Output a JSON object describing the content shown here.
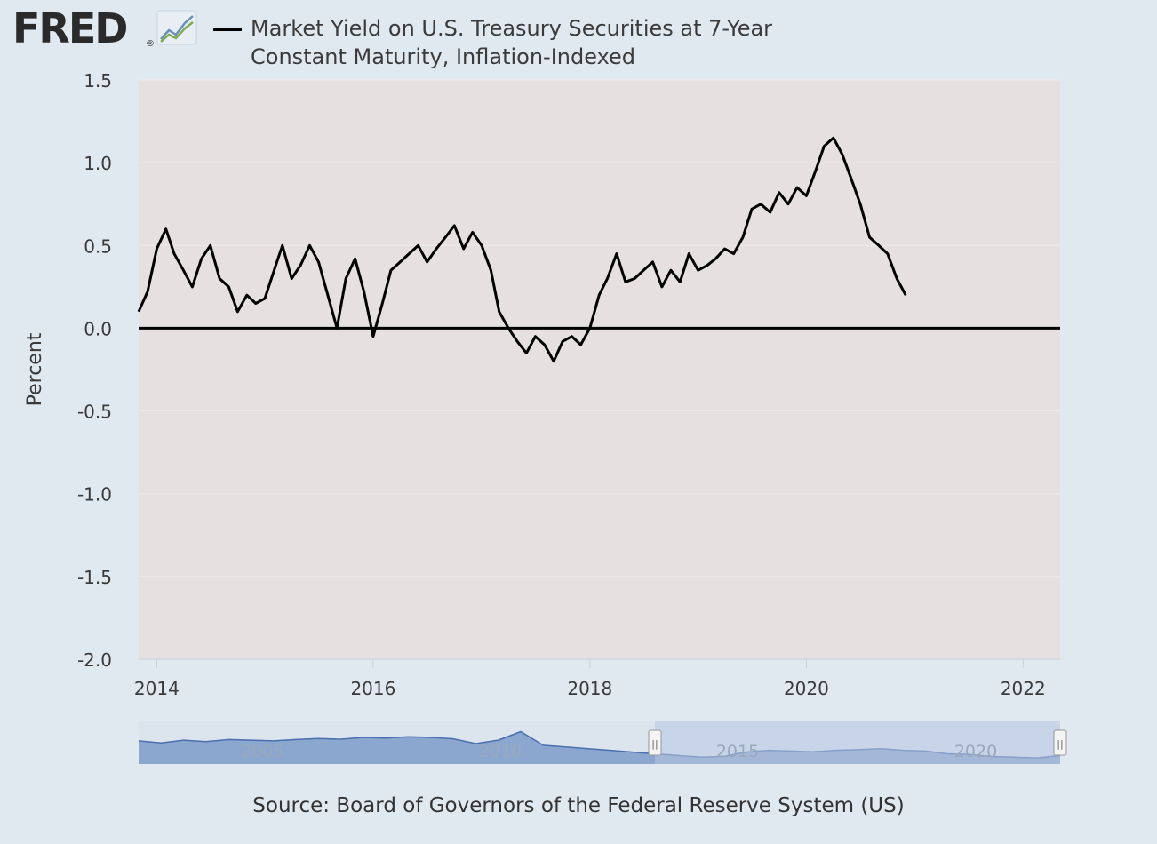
{
  "header": {
    "logo_text": "FRED",
    "logo_registered": "®",
    "logo_icon": "line-chart-icon",
    "legend_label": "Market Yield on U.S. Treasury Securities at 7-Year Constant Maturity, Inflation-Indexed"
  },
  "source": "Source: Board of Governors of the Federal Reserve System (US)",
  "colors": {
    "page_bg": "#e1e9f0",
    "plot_bg": "#e6e1e0",
    "series": "#000000",
    "navigator_fill": "#7d9cc9",
    "navigator_line": "#4a6fae",
    "navigator_selection": "#b8c7e2"
  },
  "chart_data": {
    "type": "line",
    "title": "",
    "xlabel": "",
    "ylabel": "Percent",
    "ylim": [
      -2.0,
      1.5
    ],
    "yticks": [
      1.5,
      1.0,
      0.5,
      0.0,
      -0.5,
      -1.0,
      -1.5,
      -2.0
    ],
    "ytick_labels": [
      "1.5",
      "1.0",
      "0.5",
      "0.0",
      "-0.5",
      "-1.0",
      "-1.5",
      "-2.0"
    ],
    "xlim": [
      "2013-11-01",
      "2022-05-06"
    ],
    "xticks": [
      "2014",
      "2016",
      "2018",
      "2020",
      "2022"
    ],
    "grid": true,
    "legend_position": "top",
    "reference_line": 0.0,
    "series": [
      {
        "name": "Market Yield on U.S. Treasury Securities at 7-Year Constant Maturity, Inflation-Indexed",
        "color": "#000000",
        "points": [
          [
            "2013-11-01",
            0.1
          ],
          [
            "2013-12-01",
            0.22
          ],
          [
            "2014-01-01",
            0.48
          ],
          [
            "2014-02-01",
            0.6
          ],
          [
            "2014-03-01",
            0.45
          ],
          [
            "2014-04-01",
            0.35
          ],
          [
            "2014-05-01",
            0.25
          ],
          [
            "2014-06-01",
            0.42
          ],
          [
            "2014-07-01",
            0.5
          ],
          [
            "2014-08-01",
            0.3
          ],
          [
            "2014-09-01",
            0.25
          ],
          [
            "2014-10-01",
            0.1
          ],
          [
            "2014-11-01",
            0.2
          ],
          [
            "2014-12-01",
            0.15
          ],
          [
            "2015-01-01",
            0.18
          ],
          [
            "2015-02-01",
            0.35
          ],
          [
            "2015-03-01",
            0.5
          ],
          [
            "2015-04-01",
            0.3
          ],
          [
            "2015-05-01",
            0.38
          ],
          [
            "2015-06-01",
            0.5
          ],
          [
            "2015-07-01",
            0.4
          ],
          [
            "2015-08-01",
            0.2
          ],
          [
            "2015-09-01",
            0.0
          ],
          [
            "2015-10-01",
            0.3
          ],
          [
            "2015-11-01",
            0.42
          ],
          [
            "2015-12-01",
            0.22
          ],
          [
            "2016-01-01",
            -0.05
          ],
          [
            "2016-02-01",
            0.15
          ],
          [
            "2016-03-01",
            0.35
          ],
          [
            "2016-04-01",
            0.4
          ],
          [
            "2016-05-01",
            0.45
          ],
          [
            "2016-06-01",
            0.5
          ],
          [
            "2016-07-01",
            0.4
          ],
          [
            "2016-08-01",
            0.48
          ],
          [
            "2016-09-01",
            0.55
          ],
          [
            "2016-10-01",
            0.62
          ],
          [
            "2016-11-01",
            0.48
          ],
          [
            "2016-12-01",
            0.58
          ],
          [
            "2017-01-01",
            0.5
          ],
          [
            "2017-02-01",
            0.35
          ],
          [
            "2017-03-01",
            0.1
          ],
          [
            "2017-04-01",
            0.0
          ],
          [
            "2017-05-01",
            -0.08
          ],
          [
            "2017-06-01",
            -0.15
          ],
          [
            "2017-07-01",
            -0.05
          ],
          [
            "2017-08-01",
            -0.1
          ],
          [
            "2017-09-01",
            -0.2
          ],
          [
            "2017-10-01",
            -0.08
          ],
          [
            "2017-11-01",
            -0.05
          ],
          [
            "2017-12-01",
            -0.1
          ],
          [
            "2018-01-01",
            0.0
          ],
          [
            "2018-02-01",
            0.2
          ],
          [
            "2018-03-01",
            0.3
          ],
          [
            "2018-04-01",
            0.45
          ],
          [
            "2018-05-01",
            0.28
          ],
          [
            "2018-06-01",
            0.3
          ],
          [
            "2018-07-01",
            0.35
          ],
          [
            "2018-08-01",
            0.4
          ],
          [
            "2018-09-01",
            0.25
          ],
          [
            "2018-10-01",
            0.35
          ],
          [
            "2018-11-01",
            0.28
          ],
          [
            "2018-12-01",
            0.45
          ],
          [
            "2019-01-01",
            0.35
          ],
          [
            "2019-02-01",
            0.38
          ],
          [
            "2019-03-01",
            0.42
          ],
          [
            "2019-04-01",
            0.48
          ],
          [
            "2019-05-01",
            0.45
          ],
          [
            "2019-06-01",
            0.55
          ],
          [
            "2019-07-01",
            0.72
          ],
          [
            "2019-08-01",
            0.75
          ],
          [
            "2019-09-01",
            0.7
          ],
          [
            "2019-10-01",
            0.82
          ],
          [
            "2019-11-01",
            0.75
          ],
          [
            "2019-12-01",
            0.85
          ],
          [
            "2020-01-01",
            0.8
          ],
          [
            "2020-02-01",
            0.95
          ],
          [
            "2020-03-01",
            1.1
          ],
          [
            "2020-04-01",
            1.15
          ],
          [
            "2020-05-01",
            1.05
          ],
          [
            "2020-06-01",
            0.9
          ],
          [
            "2020-07-01",
            0.75
          ],
          [
            "2020-08-01",
            0.55
          ],
          [
            "2020-09-01",
            0.5
          ],
          [
            "2020-10-01",
            0.45
          ],
          [
            "2020-11-01",
            0.3
          ],
          [
            "2020-12-01",
            0.2
          ]
        ]
      }
    ]
  },
  "navigator": {
    "tick_labels": [
      "2005",
      "2010",
      "2015",
      "2020"
    ],
    "handle_left_label": "||",
    "handle_right_label": "||"
  }
}
